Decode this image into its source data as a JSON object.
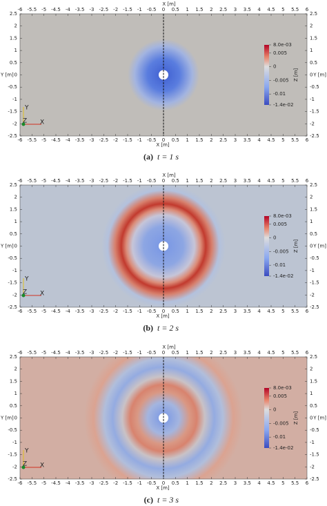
{
  "figure": {
    "x_label": "X [m]",
    "y_label": "Y [m]",
    "z_label": "Z [m]",
    "xticks": [
      -6,
      -5.5,
      -5,
      -4.5,
      -4,
      -3.5,
      -3,
      -2.5,
      -2,
      -1.5,
      -1,
      -0.5,
      0,
      0.5,
      1,
      1.5,
      2,
      2.5,
      3,
      3.5,
      4,
      4.5,
      5,
      5.5,
      6
    ],
    "yticks": [
      -2.5,
      -2,
      -1.5,
      -1,
      -0.5,
      0,
      0.5,
      1,
      1.5,
      2,
      2.5
    ],
    "colorbar_ticks": [
      {
        "value": 0.008,
        "label": "8.0e-03"
      },
      0.005,
      0,
      -0.005,
      -0.01,
      {
        "value": -0.014,
        "label": "-1.4e-02"
      }
    ],
    "triad": [
      "Y",
      "Z",
      "X"
    ],
    "panels": [
      {
        "label": "(a)",
        "caption": "t = 1 s"
      },
      {
        "label": "(b)",
        "caption": "t = 2 s"
      },
      {
        "label": "(c)",
        "caption": "t = 3 s"
      }
    ]
  }
}
